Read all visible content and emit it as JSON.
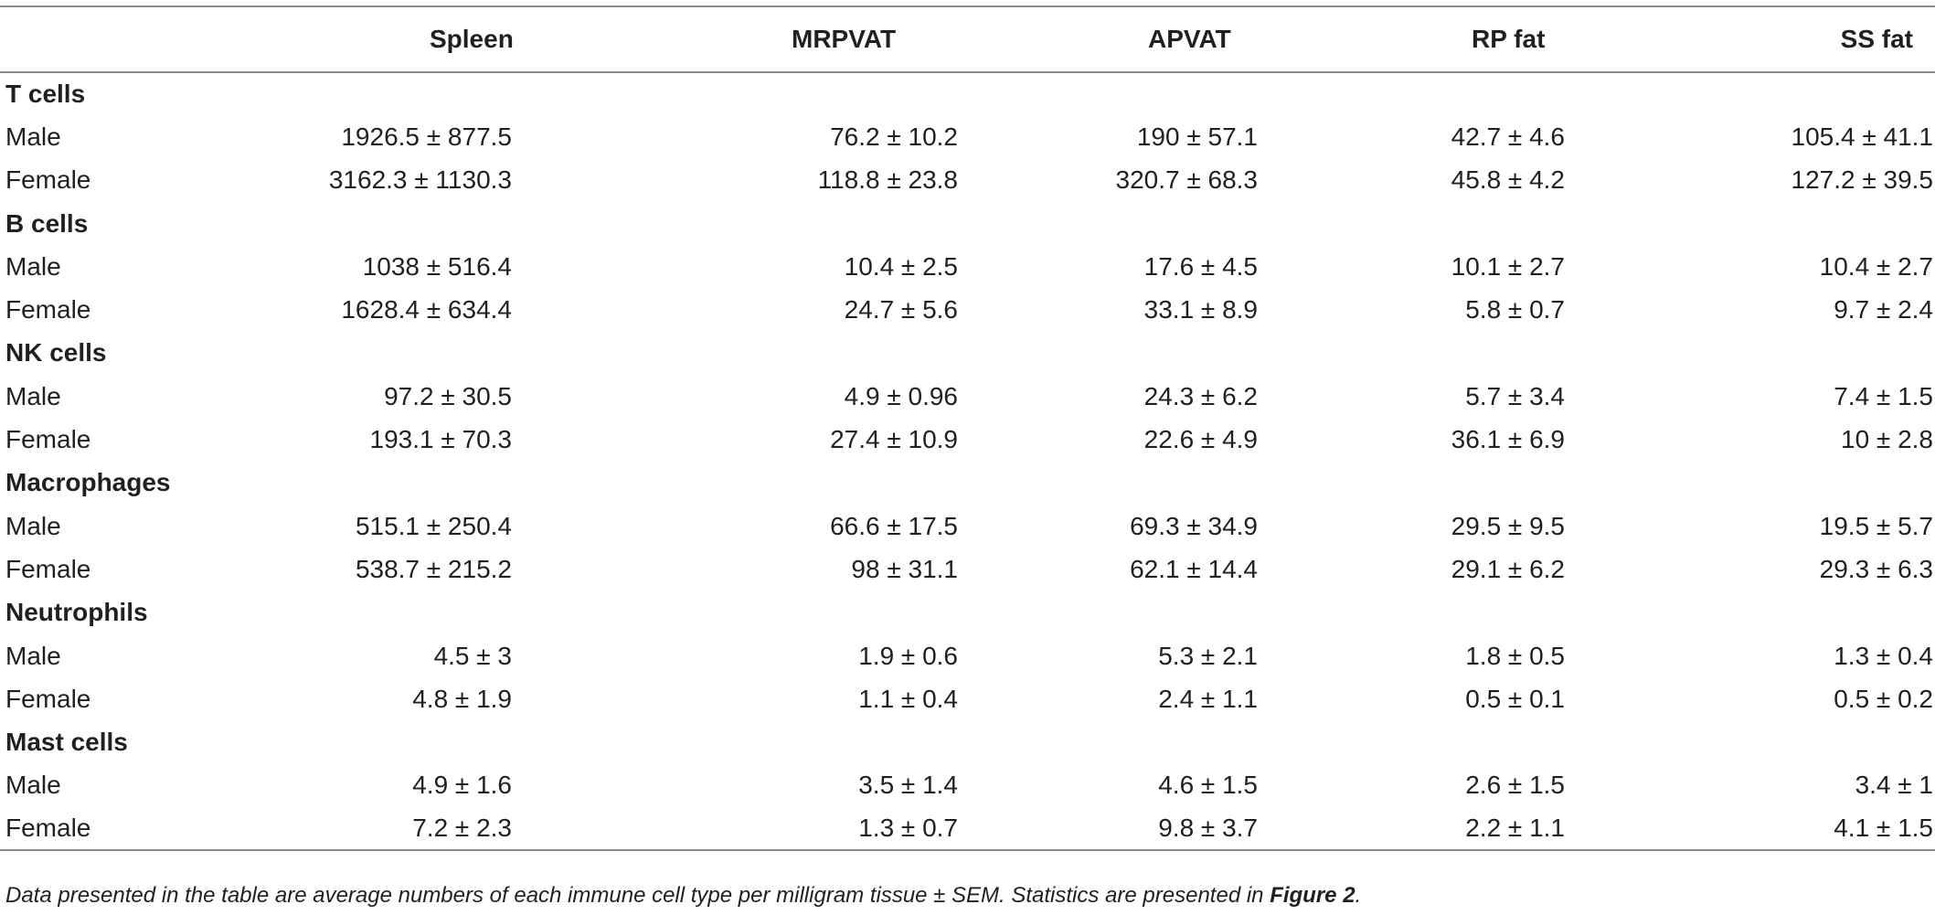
{
  "table": {
    "headers": [
      "",
      "Spleen",
      "MRPVAT",
      "APVAT",
      "RP fat",
      "SS fat"
    ],
    "groups": [
      {
        "title": "T cells",
        "rows": [
          {
            "label": "Male",
            "values": [
              "1926.5 ± 877.5",
              "76.2 ± 10.2",
              "190 ± 57.1",
              "42.7 ± 4.6",
              "105.4 ± 41.1"
            ]
          },
          {
            "label": "Female",
            "values": [
              "3162.3 ± 1130.3",
              "118.8 ± 23.8",
              "320.7 ± 68.3",
              "45.8 ± 4.2",
              "127.2 ± 39.5"
            ]
          }
        ]
      },
      {
        "title": "B cells",
        "rows": [
          {
            "label": "Male",
            "values": [
              "1038 ± 516.4",
              "10.4 ± 2.5",
              "17.6 ± 4.5",
              "10.1 ± 2.7",
              "10.4 ± 2.7"
            ]
          },
          {
            "label": "Female",
            "values": [
              "1628.4 ± 634.4",
              "24.7 ± 5.6",
              "33.1 ± 8.9",
              "5.8 ± 0.7",
              "9.7 ± 2.4"
            ]
          }
        ]
      },
      {
        "title": "NK cells",
        "rows": [
          {
            "label": "Male",
            "values": [
              "97.2 ± 30.5",
              "4.9 ± 0.96",
              "24.3 ± 6.2",
              "5.7 ± 3.4",
              "7.4 ± 1.5"
            ]
          },
          {
            "label": "Female",
            "values": [
              "193.1 ± 70.3",
              "27.4 ± 10.9",
              "22.6 ± 4.9",
              "36.1 ± 6.9",
              "10 ± 2.8"
            ]
          }
        ]
      },
      {
        "title": "Macrophages",
        "rows": [
          {
            "label": "Male",
            "values": [
              "515.1 ± 250.4",
              "66.6 ± 17.5",
              "69.3 ± 34.9",
              "29.5 ± 9.5",
              "19.5 ± 5.7"
            ]
          },
          {
            "label": "Female",
            "values": [
              "538.7 ± 215.2",
              "98 ± 31.1",
              "62.1 ± 14.4",
              "29.1 ± 6.2",
              "29.3 ± 6.3"
            ]
          }
        ]
      },
      {
        "title": "Neutrophils",
        "rows": [
          {
            "label": "Male",
            "values": [
              "4.5 ± 3",
              "1.9 ± 0.6",
              "5.3 ± 2.1",
              "1.8 ± 0.5",
              "1.3 ± 0.4"
            ]
          },
          {
            "label": "Female",
            "values": [
              "4.8 ± 1.9",
              "1.1 ± 0.4",
              "2.4 ± 1.1",
              "0.5 ± 0.1",
              "0.5 ± 0.2"
            ]
          }
        ]
      },
      {
        "title": "Mast cells",
        "rows": [
          {
            "label": "Male",
            "values": [
              "4.9 ± 1.6",
              "3.5 ± 1.4",
              "4.6 ± 1.5",
              "2.6 ± 1.5",
              "3.4 ± 1"
            ]
          },
          {
            "label": "Female",
            "values": [
              "7.2 ± 2.3",
              "1.3 ± 0.7",
              "9.8 ± 3.7",
              "2.2 ± 1.1",
              "4.1 ± 1.5"
            ]
          }
        ]
      }
    ]
  },
  "footnote": {
    "text": "Data presented in the table are average numbers of each immune cell type per milligram tissue ± SEM. Statistics are presented in ",
    "ref": "Figure 2",
    "end": "."
  }
}
